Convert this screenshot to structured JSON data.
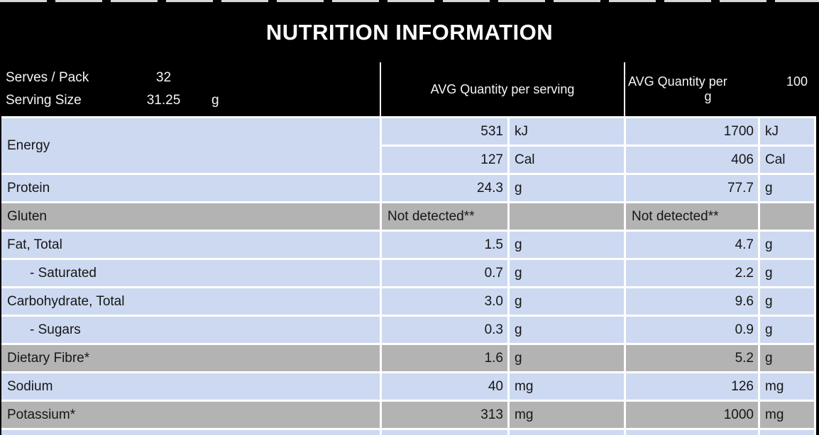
{
  "header": {
    "title": "NUTRITION INFORMATION"
  },
  "meta": {
    "serves_label": "Serves / Pack",
    "serves_value": "32",
    "serving_size_label": "Serving Size",
    "serving_size_value": "31.25",
    "serving_size_unit": "g"
  },
  "columns": {
    "per_serving": "AVG Quantity per serving",
    "per_100_prefix": "AVG Quantity per",
    "per_100_value": "100",
    "per_100_unit": "g"
  },
  "rows": [
    {
      "label": "Energy",
      "serving": "531",
      "serving_unit": "kJ",
      "per100": "1700",
      "per100_unit": "kJ"
    },
    {
      "label": "",
      "serving": "127",
      "serving_unit": "Cal",
      "per100": "406",
      "per100_unit": "Cal"
    },
    {
      "label": "Protein",
      "serving": "24.3",
      "serving_unit": "g",
      "per100": "77.7",
      "per100_unit": "g"
    },
    {
      "label": "Gluten",
      "serving": "Not detected**",
      "serving_unit": "",
      "per100": "Not detected**",
      "per100_unit": ""
    },
    {
      "label": "Fat, Total",
      "serving": "1.5",
      "serving_unit": "g",
      "per100": "4.7",
      "per100_unit": "g"
    },
    {
      "label": "- Saturated",
      "serving": "0.7",
      "serving_unit": "g",
      "per100": "2.2",
      "per100_unit": "g"
    },
    {
      "label": "Carbohydrate, Total",
      "serving": "3.0",
      "serving_unit": "g",
      "per100": "9.6",
      "per100_unit": "g"
    },
    {
      "label": "- Sugars",
      "serving": "0.3",
      "serving_unit": "g",
      "per100": "0.9",
      "per100_unit": "g"
    },
    {
      "label": "Dietary Fibre*",
      "serving": "1.6",
      "serving_unit": "g",
      "per100": "5.2",
      "per100_unit": "g"
    },
    {
      "label": "Sodium",
      "serving": "40",
      "serving_unit": "mg",
      "per100": "126",
      "per100_unit": "mg"
    },
    {
      "label": "Potassium*",
      "serving": "313",
      "serving_unit": "mg",
      "per100": "1000",
      "per100_unit": "mg"
    }
  ],
  "colors": {
    "row_blue": "#cdd9f1",
    "row_gray": "#b3b3b3",
    "banner_bg": "#000000",
    "border": "#ffffff"
  }
}
